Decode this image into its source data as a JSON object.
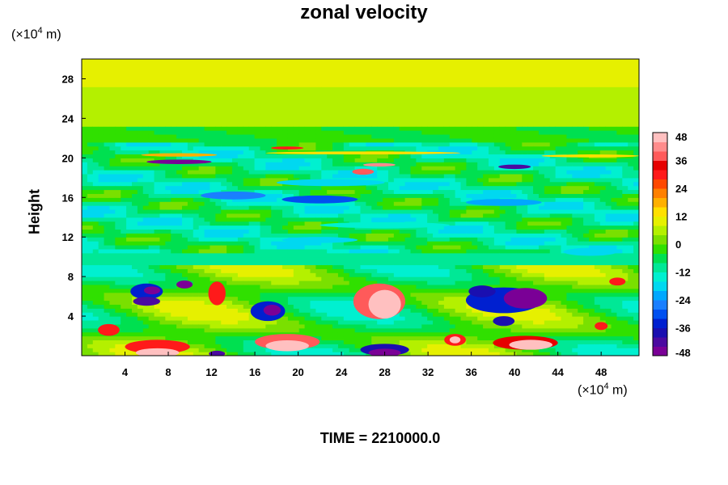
{
  "chart_data": {
    "type": "heatmap",
    "title": "zonal velocity",
    "ylabel": "Height",
    "y_unit": {
      "prefix": "(×10",
      "exp": "4",
      "suffix": " m)"
    },
    "x_unit": {
      "prefix": "(×10",
      "exp": "4",
      "suffix": " m)"
    },
    "xlim": [
      0,
      51.5
    ],
    "ylim": [
      0,
      30
    ],
    "x_ticks": [
      4,
      8,
      12,
      16,
      20,
      24,
      28,
      32,
      36,
      40,
      44,
      48
    ],
    "y_ticks": [
      4,
      8,
      12,
      16,
      20,
      24,
      28
    ],
    "colorbar": {
      "ticks": [
        48,
        36,
        24,
        12,
        0,
        -12,
        -24,
        -36,
        -48
      ],
      "range": [
        -48,
        48
      ],
      "colors": [
        "#7a0096",
        "#4b0aa0",
        "#1a0fb0",
        "#0020d0",
        "#0050f0",
        "#1a7fff",
        "#00a8ff",
        "#00d8f0",
        "#00f0d0",
        "#00e896",
        "#00e050",
        "#30e000",
        "#7ae000",
        "#b4f000",
        "#e6f000",
        "#ffe000",
        "#ffb000",
        "#ff8000",
        "#ff4800",
        "#ff1a1a",
        "#e60000",
        "#ff5a5a",
        "#ff8c8c",
        "#ffc0c0"
      ]
    },
    "features": [
      {
        "x": 9,
        "y": 20.3,
        "w": 7,
        "h": 0.35,
        "v": 18
      },
      {
        "x": 26,
        "y": 20.5,
        "w": 18,
        "h": 0.3,
        "v": 15
      },
      {
        "x": 47,
        "y": 20.2,
        "w": 9,
        "h": 0.3,
        "v": 12
      },
      {
        "x": 9,
        "y": 19.6,
        "w": 6,
        "h": 0.45,
        "v": -48
      },
      {
        "x": 19,
        "y": 21.0,
        "w": 3,
        "h": 0.3,
        "v": 30
      },
      {
        "x": 27.5,
        "y": 19.3,
        "w": 3,
        "h": 0.35,
        "v": 40
      },
      {
        "x": 26,
        "y": 18.6,
        "w": 2,
        "h": 0.6,
        "v": 36
      },
      {
        "x": 40,
        "y": 19.1,
        "w": 3,
        "h": 0.45,
        "v": -44
      },
      {
        "x": 23,
        "y": 17.5,
        "w": 10,
        "h": 0.7,
        "v": -18
      },
      {
        "x": 14,
        "y": 16.2,
        "w": 6,
        "h": 0.8,
        "v": -26
      },
      {
        "x": 22,
        "y": 15.8,
        "w": 7,
        "h": 0.8,
        "v": -30
      },
      {
        "x": 39,
        "y": 15.5,
        "w": 7,
        "h": 0.7,
        "v": -22
      },
      {
        "x": 28,
        "y": 13.2,
        "w": 12,
        "h": 0.6,
        "v": -16
      },
      {
        "x": 22,
        "y": 11.7,
        "w": 7,
        "h": 0.6,
        "v": -20
      },
      {
        "x": 47,
        "y": 10.5,
        "w": 5,
        "h": 0.8,
        "v": -18
      },
      {
        "x": 27,
        "y": 9.8,
        "w": 30,
        "h": 0.25,
        "v": -12
      },
      {
        "x": 6,
        "y": 6.5,
        "w": 3,
        "h": 1.6,
        "v": -36
      },
      {
        "x": 6.5,
        "y": 6.6,
        "w": 1.5,
        "h": 0.8,
        "v": -48
      },
      {
        "x": 9.5,
        "y": 7.2,
        "w": 1.5,
        "h": 0.8,
        "v": -48
      },
      {
        "x": 6,
        "y": 5.5,
        "w": 2.5,
        "h": 0.9,
        "v": -44
      },
      {
        "x": 12.5,
        "y": 6.3,
        "w": 1.6,
        "h": 2.4,
        "v": 30
      },
      {
        "x": 17.2,
        "y": 4.5,
        "w": 3.2,
        "h": 2.0,
        "v": -36
      },
      {
        "x": 17.6,
        "y": 4.6,
        "w": 1.6,
        "h": 1.1,
        "v": -48
      },
      {
        "x": 27.5,
        "y": 5.5,
        "w": 4.8,
        "h": 3.6,
        "v": 36
      },
      {
        "x": 28,
        "y": 5.2,
        "w": 3.0,
        "h": 2.9,
        "v": 52
      },
      {
        "x": 39,
        "y": 5.6,
        "w": 7,
        "h": 2.6,
        "v": -36
      },
      {
        "x": 41,
        "y": 5.8,
        "w": 4,
        "h": 2.1,
        "v": -48
      },
      {
        "x": 37,
        "y": 6.5,
        "w": 2.5,
        "h": 1.2,
        "v": -40
      },
      {
        "x": 49.5,
        "y": 7.5,
        "w": 1.5,
        "h": 0.8,
        "v": 30
      },
      {
        "x": 2.5,
        "y": 2.6,
        "w": 2,
        "h": 1.2,
        "v": 30
      },
      {
        "x": 7,
        "y": 0.9,
        "w": 6,
        "h": 1.4,
        "v": 30
      },
      {
        "x": 7,
        "y": 0.3,
        "w": 4,
        "h": 0.9,
        "v": 52
      },
      {
        "x": 12.5,
        "y": 0.2,
        "w": 1.5,
        "h": 0.6,
        "v": -44
      },
      {
        "x": 19,
        "y": 1.4,
        "w": 6,
        "h": 1.6,
        "v": 36
      },
      {
        "x": 19,
        "y": 1.0,
        "w": 4,
        "h": 1.1,
        "v": 52
      },
      {
        "x": 28,
        "y": 0.6,
        "w": 4.5,
        "h": 1.2,
        "v": -40
      },
      {
        "x": 28,
        "y": 0.3,
        "w": 3,
        "h": 0.8,
        "v": -48
      },
      {
        "x": 34.5,
        "y": 1.6,
        "w": 2,
        "h": 1.2,
        "v": 30
      },
      {
        "x": 34.5,
        "y": 1.6,
        "w": 1,
        "h": 0.7,
        "v": 52
      },
      {
        "x": 39,
        "y": 3.5,
        "w": 2,
        "h": 1.0,
        "v": -40
      },
      {
        "x": 41,
        "y": 1.3,
        "w": 6,
        "h": 1.4,
        "v": 34
      },
      {
        "x": 41.5,
        "y": 1.1,
        "w": 4,
        "h": 1.0,
        "v": 52
      },
      {
        "x": 48,
        "y": 3.0,
        "w": 1.2,
        "h": 0.8,
        "v": 30
      }
    ],
    "time_label": "TIME = 2210000.0"
  }
}
